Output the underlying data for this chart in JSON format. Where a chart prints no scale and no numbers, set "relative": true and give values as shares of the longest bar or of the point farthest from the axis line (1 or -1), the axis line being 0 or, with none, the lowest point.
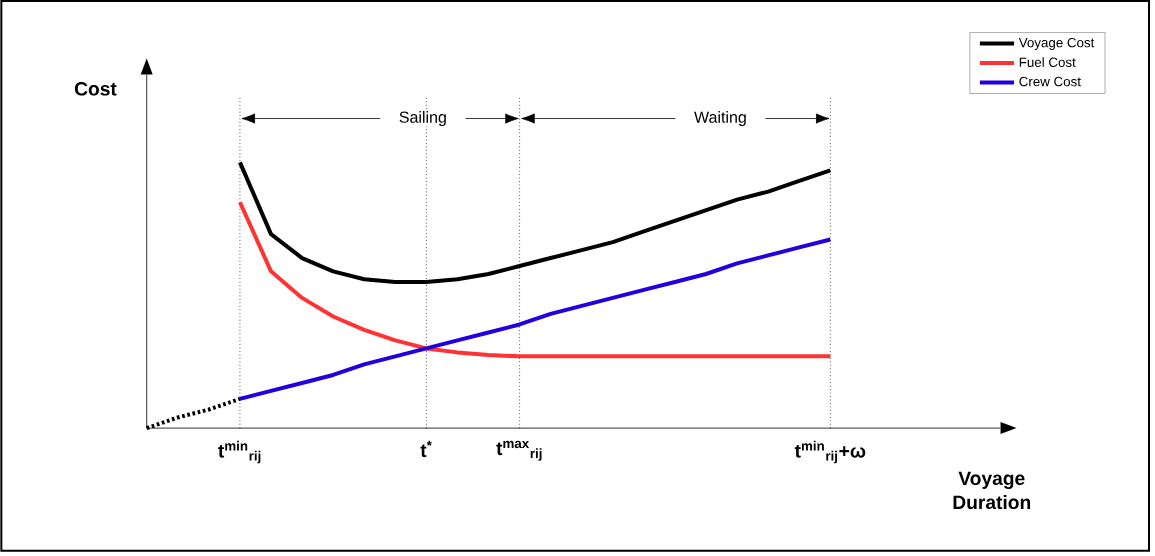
{
  "chart_data": {
    "type": "line",
    "relative": true,
    "ylabel": "Cost",
    "xlabel": "Voyage Duration",
    "categories": [
      null,
      null,
      null,
      "**t**$^{min}$$_{rij}$",
      null,
      null,
      null,
      null,
      null,
      "**t**$^{*}$",
      null,
      null,
      "**t**$^{max}$$_{rij}$",
      null,
      null,
      null,
      null,
      null,
      null,
      null,
      null,
      null,
      "**t**$^{min}$$_{rij}$**+ω**"
    ],
    "legend": "top right",
    "grid": "x",
    "series": [
      {
        "name": "Voyage Cost",
        "color": "#000000",
        "values": [
          null,
          null,
          null,
          1,
          0.73,
          0.64,
          0.59,
          0.56,
          0.55,
          0.55,
          0.56,
          0.58,
          0.61,
          0.64,
          0.67,
          0.7,
          0.74,
          0.78,
          0.82,
          0.86,
          0.89,
          0.93,
          0.97
        ]
      },
      {
        "name": "Fuel Cost",
        "color": "#ff3333",
        "values": [
          null,
          null,
          null,
          0.85,
          0.59,
          0.49,
          0.42,
          0.37,
          0.33,
          0.3,
          0.285,
          0.275,
          0.27,
          0.27,
          0.27,
          0.27,
          0.27,
          0.27,
          0.27,
          0.27,
          0.27,
          0.27,
          0.27
        ]
      },
      {
        "name": "Crew Cost",
        "color": "#2200dd",
        "values": [
          null,
          null,
          null,
          0.11,
          0.14,
          0.17,
          0.2,
          0.24,
          0.27,
          0.3,
          0.33,
          0.36,
          0.39,
          0.43,
          0.46,
          0.49,
          0.52,
          0.55,
          0.58,
          0.62,
          0.65,
          0.68,
          0.71
        ]
      },
      {
        "color": "#000000",
        "line_style": "dotted",
        "values": [
          0,
          0.04,
          0.07,
          0.11,
          null,
          null,
          null,
          null,
          null,
          null,
          null,
          null,
          null,
          null,
          null,
          null,
          null,
          null,
          null,
          null,
          null,
          null,
          null
        ]
      }
    ],
    "annotations": [
      "Sailing",
      "Waiting"
    ]
  }
}
